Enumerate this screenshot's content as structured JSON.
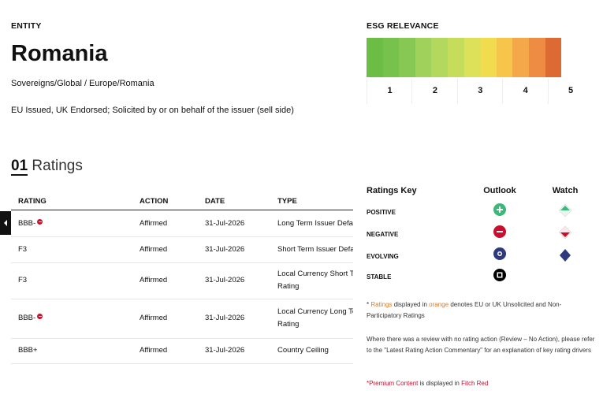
{
  "entity": {
    "label": "ENTITY",
    "name": "Romania",
    "sector": "Sovereigns/Global / Europe/Romania",
    "note": "EU Issued, UK Endorsed; Solicited by or on behalf of the issuer (sell side)"
  },
  "esg": {
    "title": "ESG RELEVANCE",
    "scale": [
      "1",
      "2",
      "3",
      "4",
      "5"
    ]
  },
  "ratings": {
    "number": "01",
    "title": "Ratings",
    "headers": [
      "RATING",
      "ACTION",
      "DATE",
      "TYPE"
    ],
    "rows": [
      [
        "BBB-",
        "Affirmed",
        "31-Jul-2026",
        [
          "Long Term Issuer Defau"
        ]
      ],
      [
        "F3",
        "Affirmed",
        "31-Jul-2026",
        [
          "Short Term Issuer Defa"
        ]
      ],
      [
        "F3",
        "Affirmed",
        "31-Jul-2026",
        [
          "Local Currency Short Te",
          "Rating"
        ]
      ],
      [
        "BBB-",
        "Affirmed",
        "31-Jul-2026",
        [
          "Local Currency Long Te",
          "Rating"
        ]
      ],
      [
        "BBB+",
        "Affirmed",
        "31-Jul-2026",
        [
          "Country Ceiling"
        ]
      ]
    ]
  },
  "key": {
    "title": "Ratings Key",
    "columns": [
      "Outlook",
      "Watch"
    ],
    "rows": [
      "POSITIVE",
      "NEGATIVE",
      "EVOLVING",
      "STABLE"
    ]
  },
  "notes": [
    [
      "* ",
      "Ratings",
      " displayed in ",
      "orange",
      " denotes EU or UK Unsolicited and Non-Participatory Ratings"
    ],
    [
      "Where there was a review with no rating action (Review – No Action), please refer to the \"Latest Rating Action Commentary\" for an explanation of key rating drivers"
    ],
    [
      "*Premium Content",
      " is displayed in ",
      "Fitch Red"
    ]
  ]
}
